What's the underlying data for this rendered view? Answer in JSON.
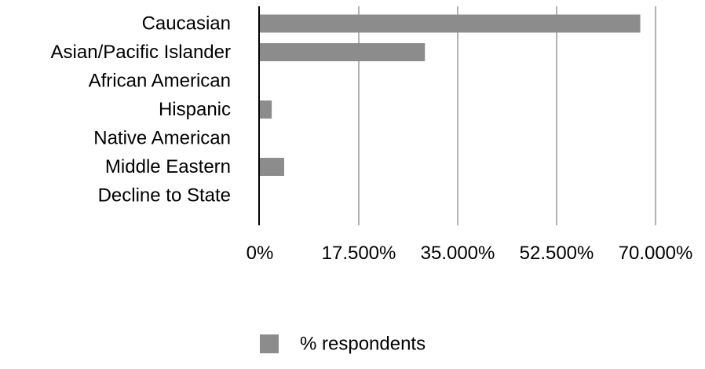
{
  "chart_data": {
    "type": "bar",
    "orientation": "horizontal",
    "categories": [
      "Caucasian",
      "Asian/Pacific Islander",
      "African American",
      "Hispanic",
      "Native American",
      "Middle Eastern",
      "Decline to State"
    ],
    "series": [
      {
        "name": "% respondents",
        "values": [
          67.3,
          29.2,
          0,
          2.1,
          0,
          4.3,
          0
        ]
      }
    ],
    "xlim": [
      0,
      70
    ],
    "xticks": [
      0,
      17.5,
      35,
      52.5,
      70
    ],
    "xtick_labels": [
      "0%",
      "17.500%",
      "35.000%",
      "52.500%",
      "70.000%"
    ],
    "title": "",
    "xlabel": "",
    "ylabel": "",
    "grid": "vertical",
    "legend": {
      "position": "bottom",
      "entries": [
        "% respondents"
      ]
    },
    "colors": {
      "bar": "#8c8c8c",
      "gridline": "#b3b3b3",
      "axis": "#000000"
    }
  }
}
